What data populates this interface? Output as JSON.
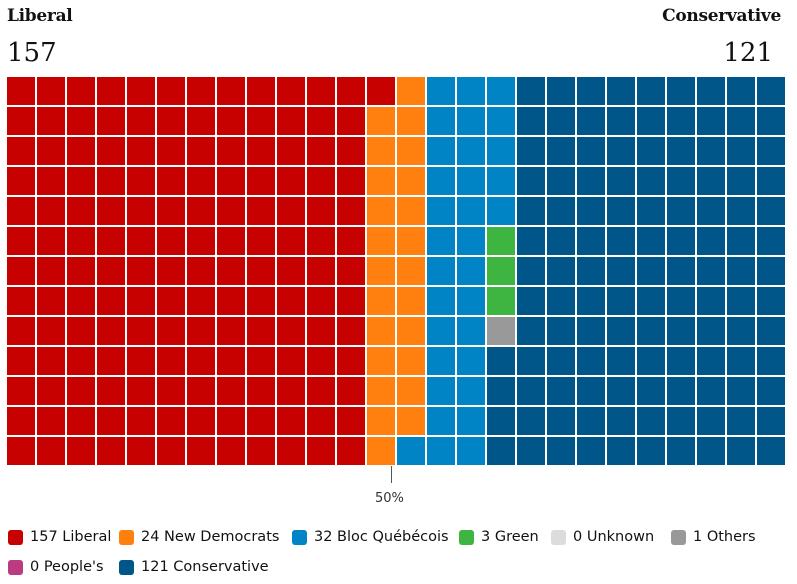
{
  "header": {
    "left_party": "Liberal",
    "left_seats": "157",
    "right_party": "Conservative",
    "right_seats": "121"
  },
  "majority_label": "50%",
  "colors": {
    "liberal": "#c70000",
    "ndp": "#ff7f0f",
    "bloc": "#0084c6",
    "green": "#3db540",
    "unknown": "#dcdcdc",
    "others": "#999999",
    "peoples": "#bb3b80",
    "conservative": "#005689"
  },
  "chart_data": {
    "type": "waffle",
    "title": "",
    "grid": {
      "rows": 13,
      "columns": 26
    },
    "fill_order": "left party from the left edge, remaining parties in legend order; right party fills from the right edge",
    "majority_marker": "50%",
    "series": [
      {
        "name": "Liberal",
        "seats": 157,
        "legend": "157 Liberal",
        "color_key": "liberal"
      },
      {
        "name": "New Democrats",
        "seats": 24,
        "legend": "24 New Democrats",
        "color_key": "ndp"
      },
      {
        "name": "Bloc Québécois",
        "seats": 32,
        "legend": "32 Bloc Québécois",
        "color_key": "bloc"
      },
      {
        "name": "Green",
        "seats": 3,
        "legend": "3 Green",
        "color_key": "green"
      },
      {
        "name": "Unknown",
        "seats": 0,
        "legend": "0 Unknown",
        "color_key": "unknown"
      },
      {
        "name": "Others",
        "seats": 1,
        "legend": "1 Others",
        "color_key": "others"
      },
      {
        "name": "People's",
        "seats": 0,
        "legend": "0 People's",
        "color_key": "peoples"
      },
      {
        "name": "Conservative",
        "seats": 121,
        "legend": "121 Conservative",
        "color_key": "conservative"
      }
    ]
  }
}
